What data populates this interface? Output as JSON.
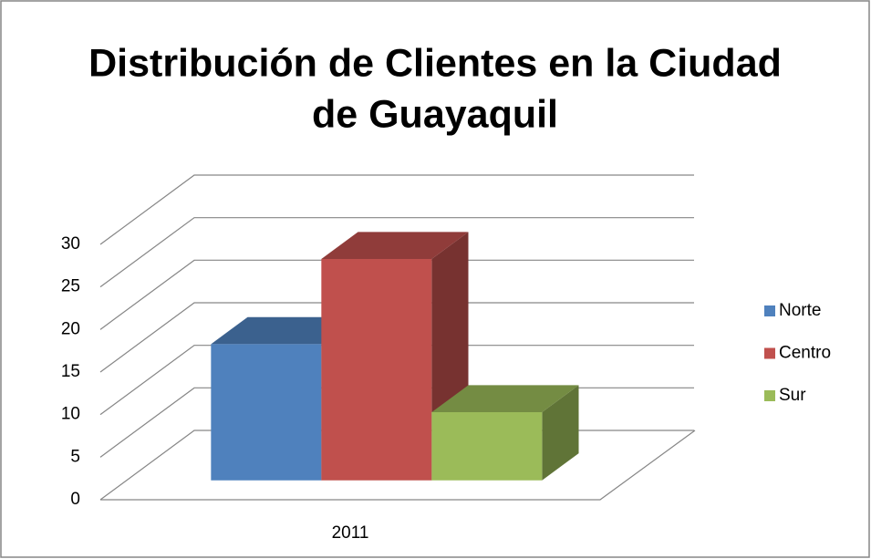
{
  "chart_data": {
    "type": "bar3d",
    "title": [
      "Distribución de Clientes en la Ciudad",
      "de Guayaquil"
    ],
    "categories": [
      "2011"
    ],
    "series": [
      {
        "name": "Norte",
        "color": "#4f81bd",
        "values": [
          16
        ]
      },
      {
        "name": "Centro",
        "color": "#c0504d",
        "values": [
          26
        ]
      },
      {
        "name": "Sur",
        "color": "#9bbb59",
        "values": [
          8
        ]
      }
    ],
    "ylim": [
      0,
      30
    ],
    "yticks": [
      0,
      5,
      10,
      15,
      20,
      25,
      30
    ],
    "grid": true,
    "legend": "right"
  }
}
